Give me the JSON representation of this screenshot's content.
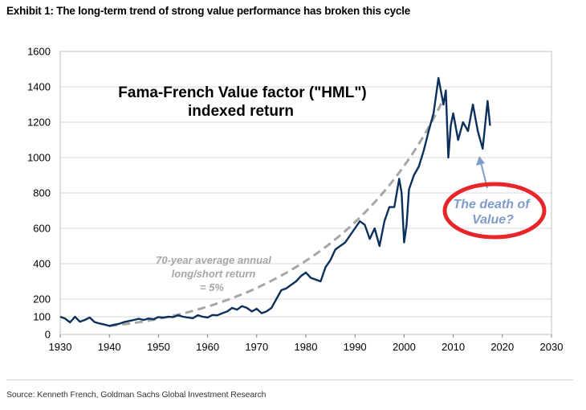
{
  "header": {
    "title": "Exhibit 1: The long-term trend of strong value performance has broken this cycle"
  },
  "footer": {
    "source": "Source: Kenneth French, Goldman Sachs Global Investment Research"
  },
  "colors": {
    "series": "#0c2f5c",
    "trend": "#a6a6a6",
    "circle": "#e8262a",
    "arrow": "#7f9cc8",
    "grid": "#d9d9d9"
  },
  "chart_data": {
    "type": "line",
    "title": "Fama-French Value factor (\"HML\")",
    "title_line2": "indexed return",
    "xlabel": "",
    "ylabel": "",
    "xlim": [
      1930,
      2030
    ],
    "ylim": [
      0,
      1600
    ],
    "x_ticks": [
      1930,
      1940,
      1950,
      1960,
      1970,
      1980,
      1990,
      2000,
      2010,
      2020,
      2030
    ],
    "y_ticks": [
      0,
      100,
      200,
      400,
      600,
      800,
      1000,
      1200,
      1400,
      1600
    ],
    "grid": "horizontal",
    "series": [
      {
        "name": "HML indexed return",
        "points": [
          [
            1930,
            100
          ],
          [
            1931,
            90
          ],
          [
            1932,
            68
          ],
          [
            1933,
            100
          ],
          [
            1934,
            72
          ],
          [
            1935,
            82
          ],
          [
            1936,
            96
          ],
          [
            1937,
            70
          ],
          [
            1938,
            62
          ],
          [
            1939,
            56
          ],
          [
            1940,
            48
          ],
          [
            1941,
            55
          ],
          [
            1942,
            60
          ],
          [
            1943,
            70
          ],
          [
            1944,
            76
          ],
          [
            1945,
            82
          ],
          [
            1946,
            88
          ],
          [
            1947,
            82
          ],
          [
            1948,
            90
          ],
          [
            1949,
            86
          ],
          [
            1950,
            98
          ],
          [
            1951,
            96
          ],
          [
            1952,
            100
          ],
          [
            1953,
            98
          ],
          [
            1954,
            108
          ],
          [
            1955,
            100
          ],
          [
            1956,
            96
          ],
          [
            1957,
            92
          ],
          [
            1958,
            108
          ],
          [
            1959,
            100
          ],
          [
            1960,
            96
          ],
          [
            1961,
            110
          ],
          [
            1962,
            108
          ],
          [
            1963,
            120
          ],
          [
            1964,
            130
          ],
          [
            1965,
            150
          ],
          [
            1966,
            140
          ],
          [
            1967,
            160
          ],
          [
            1968,
            150
          ],
          [
            1969,
            130
          ],
          [
            1970,
            145
          ],
          [
            1971,
            120
          ],
          [
            1972,
            130
          ],
          [
            1973,
            150
          ],
          [
            1974,
            200
          ],
          [
            1975,
            250
          ],
          [
            1976,
            260
          ],
          [
            1977,
            280
          ],
          [
            1978,
            300
          ],
          [
            1979,
            330
          ],
          [
            1980,
            350
          ],
          [
            1981,
            320
          ],
          [
            1982,
            310
          ],
          [
            1983,
            300
          ],
          [
            1984,
            380
          ],
          [
            1985,
            420
          ],
          [
            1986,
            480
          ],
          [
            1987,
            500
          ],
          [
            1988,
            520
          ],
          [
            1989,
            560
          ],
          [
            1990,
            600
          ],
          [
            1991,
            640
          ],
          [
            1992,
            620
          ],
          [
            1993,
            540
          ],
          [
            1994,
            600
          ],
          [
            1995,
            500
          ],
          [
            1996,
            640
          ],
          [
            1997,
            720
          ],
          [
            1998,
            720
          ],
          [
            1999,
            880
          ],
          [
            1999.5,
            800
          ],
          [
            2000,
            520
          ],
          [
            2000.5,
            620
          ],
          [
            2001,
            820
          ],
          [
            2002,
            900
          ],
          [
            2003,
            950
          ],
          [
            2004,
            1040
          ],
          [
            2005,
            1150
          ],
          [
            2006,
            1250
          ],
          [
            2007,
            1450
          ],
          [
            2008,
            1300
          ],
          [
            2008.5,
            1380
          ],
          [
            2009,
            1000
          ],
          [
            2009.5,
            1180
          ],
          [
            2010,
            1250
          ],
          [
            2011,
            1100
          ],
          [
            2012,
            1200
          ],
          [
            2013,
            1150
          ],
          [
            2014,
            1300
          ],
          [
            2015,
            1150
          ],
          [
            2016,
            1050
          ],
          [
            2017,
            1320
          ],
          [
            2017.5,
            1180
          ]
        ]
      }
    ],
    "trend": {
      "name": "70-year average annual long/short return = 5%",
      "start": [
        1940,
        48
      ],
      "end": [
        2008,
        1330
      ]
    },
    "annotations": {
      "avg_return": [
        "70-year average annual",
        "long/short return",
        "= 5%"
      ],
      "death": [
        "The death of",
        "Value?"
      ]
    }
  }
}
